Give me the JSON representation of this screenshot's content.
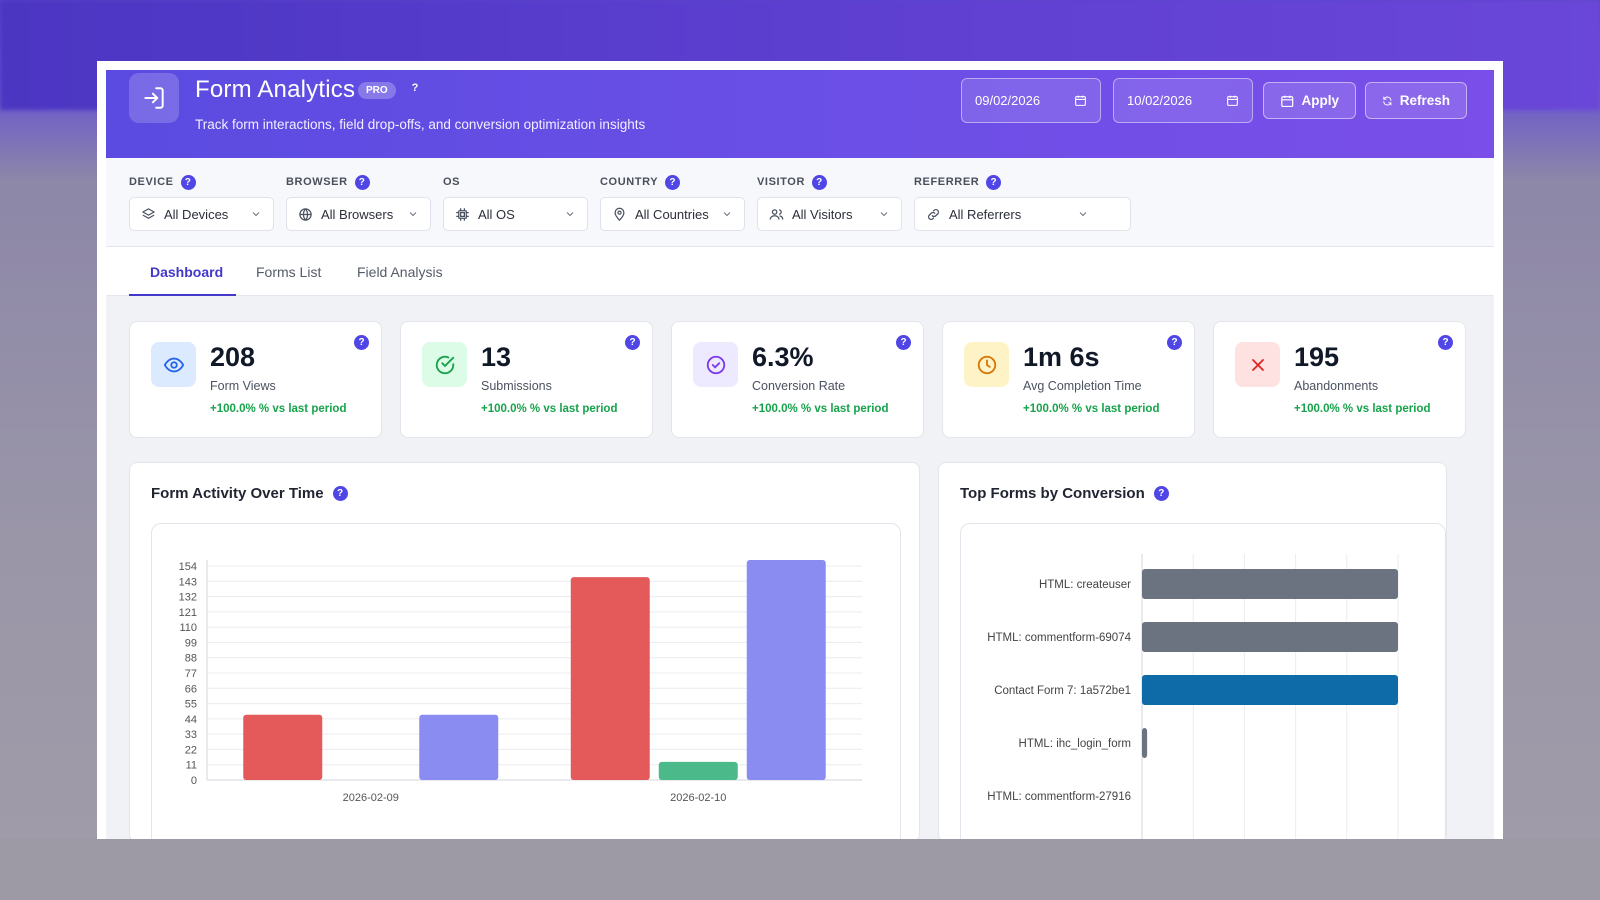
{
  "header": {
    "title": "Form Analytics",
    "badge": "PRO",
    "help": "?",
    "subtitle": "Track form interactions, field drop-offs, and conversion optimization insights",
    "date_from": "09/02/2026",
    "date_to": "10/02/2026",
    "apply_label": "Apply",
    "refresh_label": "Refresh"
  },
  "filters": [
    {
      "label": "DEVICE",
      "value": "All Devices",
      "icon": "layers-icon"
    },
    {
      "label": "BROWSER",
      "value": "All Browsers",
      "icon": "globe-icon"
    },
    {
      "label": "OS",
      "value": "All OS",
      "icon": "chip-icon"
    },
    {
      "label": "COUNTRY",
      "value": "All Countries",
      "icon": "map-pin-icon"
    },
    {
      "label": "VISITOR",
      "value": "All Visitors",
      "icon": "users-icon"
    },
    {
      "label": "REFERRER",
      "value": "All Referrers",
      "icon": "link-icon"
    }
  ],
  "tabs": [
    "Dashboard",
    "Forms List",
    "Field Analysis"
  ],
  "active_tab": "Dashboard",
  "stats": [
    {
      "value": "208",
      "label": "Form Views",
      "change": "+100.0% % vs last period",
      "icon": "eye-icon",
      "bg": "#dbeafe",
      "fg": "#2563eb"
    },
    {
      "value": "13",
      "label": "Submissions",
      "change": "+100.0% % vs last period",
      "icon": "check-circle-icon",
      "bg": "#dcfce7",
      "fg": "#16a34a"
    },
    {
      "value": "6.3%",
      "label": "Conversion Rate",
      "change": "+100.0% % vs last period",
      "icon": "target-check-icon",
      "bg": "#ede9fe",
      "fg": "#7c3aed"
    },
    {
      "value": "1m 6s",
      "label": "Avg Completion Time",
      "change": "+100.0% % vs last period",
      "icon": "clock-icon",
      "bg": "#fef3c7",
      "fg": "#d97706"
    },
    {
      "value": "195",
      "label": "Abandonments",
      "change": "+100.0% % vs last period",
      "icon": "x-icon",
      "bg": "#fee2e2",
      "fg": "#dc2626"
    }
  ],
  "panels": {
    "activity_title": "Form Activity Over Time",
    "top_forms_title": "Top Forms by Conversion"
  },
  "chart_data": [
    {
      "type": "bar",
      "title": "Form Activity Over Time",
      "categories": [
        "2026-02-09",
        "2026-02-10"
      ],
      "y_ticks": [
        0,
        11,
        22,
        33,
        44,
        55,
        66,
        77,
        88,
        99,
        110,
        121,
        132,
        143,
        154
      ],
      "ylim": [
        0,
        154
      ],
      "series": [
        {
          "color": "#e45a5a",
          "values": [
            47,
            146
          ]
        },
        {
          "color": "#4cb98a",
          "values": [
            0,
            13
          ]
        },
        {
          "color": "#8b8cf2",
          "values": [
            47,
            160
          ]
        }
      ]
    },
    {
      "type": "bar",
      "orientation": "horizontal",
      "title": "Top Forms by Conversion",
      "categories": [
        "HTML: createuser",
        "HTML: commentform-69074",
        "Contact Form 7: 1a572be1",
        "HTML: ihc_login_form",
        "HTML: commentform-27916"
      ],
      "values": [
        100,
        100,
        100,
        2,
        0
      ],
      "colors": [
        "#6b7280",
        "#6b7280",
        "#0e6ba8",
        "#6b7280",
        "#6b7280"
      ],
      "xlim": [
        0,
        100
      ]
    }
  ]
}
